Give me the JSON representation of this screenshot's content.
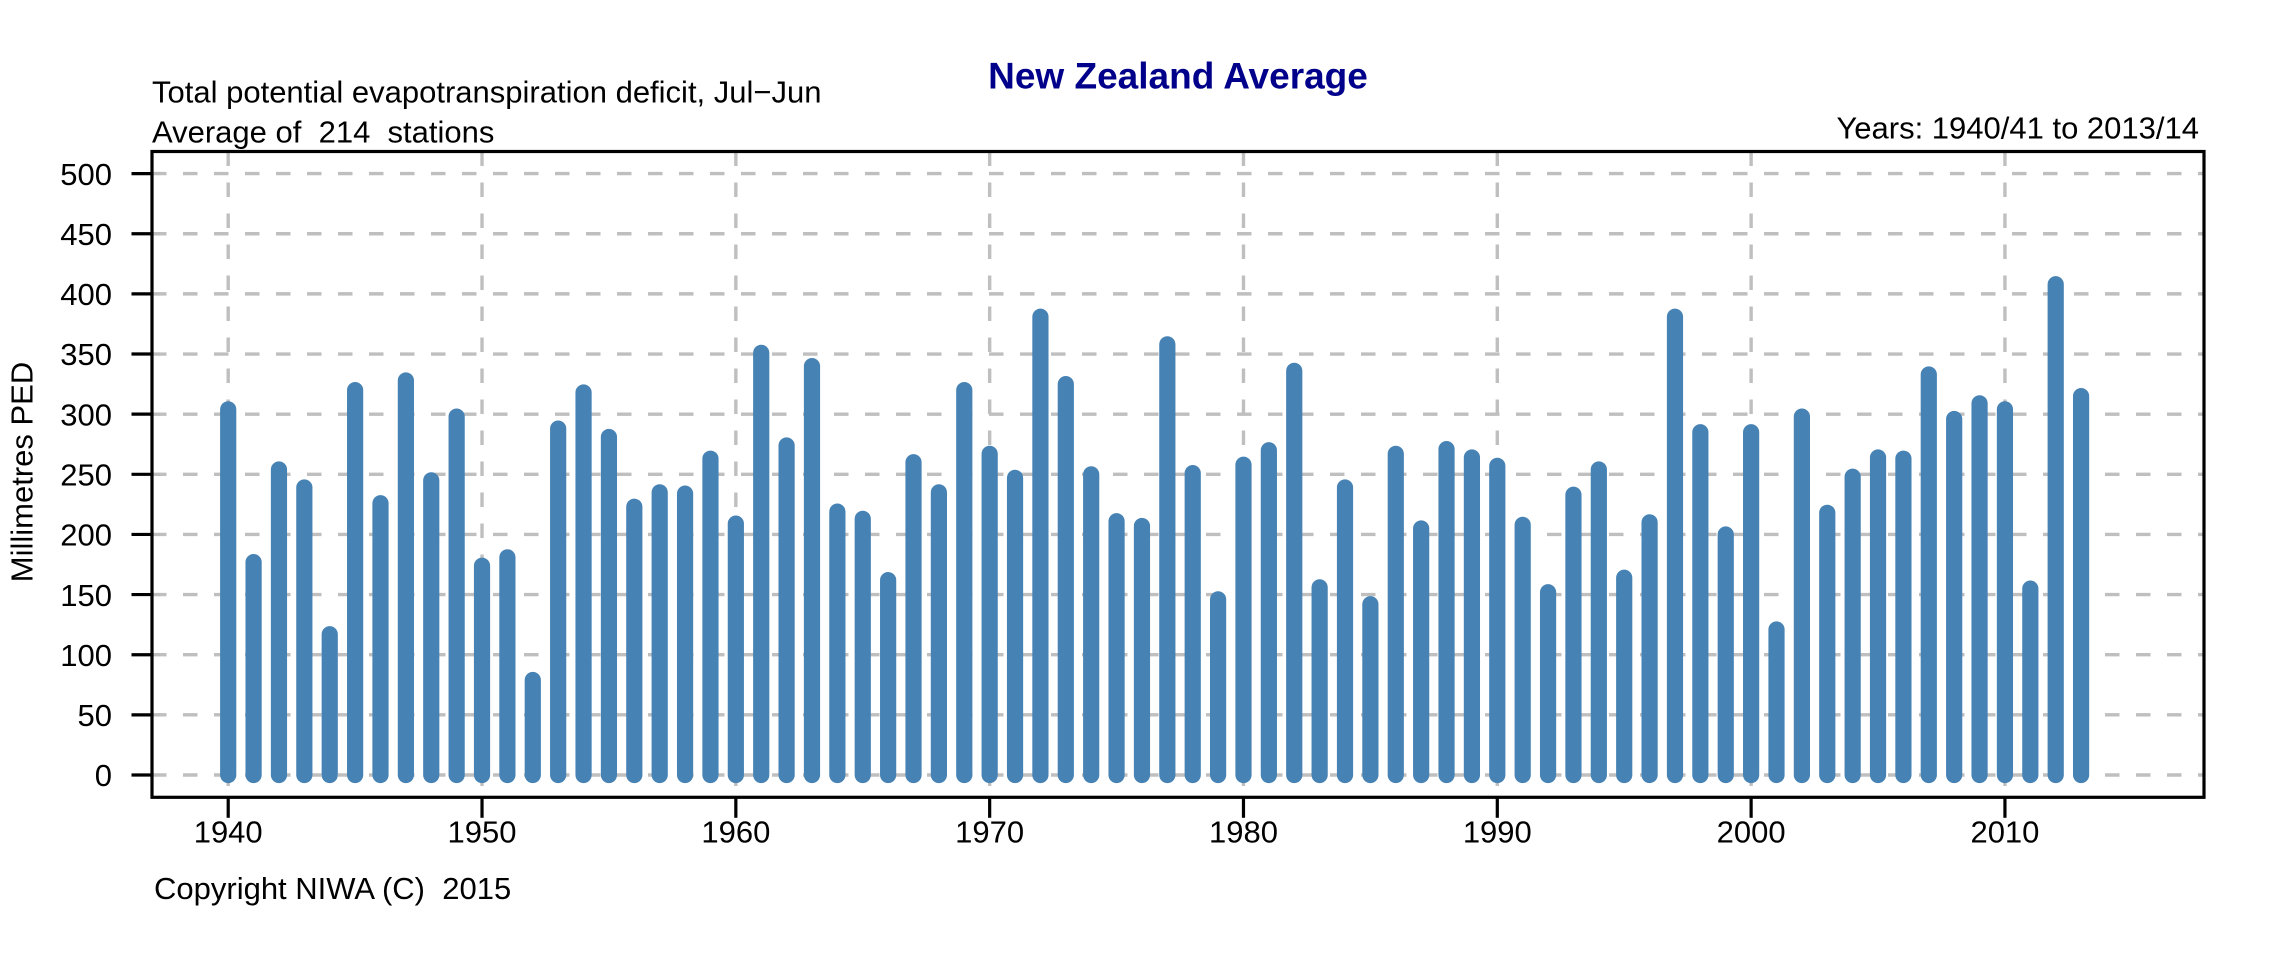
{
  "chart_data": {
    "type": "bar",
    "title": "New Zealand Average",
    "subtitle_line1": "Total potential evapotranspiration deficit, Jul−Jun",
    "subtitle_line2": "Average of  214  stations",
    "years_note": "Years: 1940/41 to 2013/14",
    "copyright": "Copyright NIWA (C)  2015",
    "ylabel": "Millimetres PED",
    "xlabel": "",
    "x": [
      1940,
      1941,
      1942,
      1943,
      1944,
      1945,
      1946,
      1947,
      1948,
      1949,
      1950,
      1951,
      1952,
      1953,
      1954,
      1955,
      1956,
      1957,
      1958,
      1959,
      1960,
      1961,
      1962,
      1963,
      1964,
      1965,
      1966,
      1967,
      1968,
      1969,
      1970,
      1971,
      1972,
      1973,
      1974,
      1975,
      1976,
      1977,
      1978,
      1979,
      1980,
      1981,
      1982,
      1983,
      1984,
      1985,
      1986,
      1987,
      1988,
      1989,
      1990,
      1991,
      1992,
      1993,
      1994,
      1995,
      1996,
      1997,
      1998,
      1999,
      2000,
      2001,
      2002,
      2003,
      2004,
      2005,
      2006,
      2007,
      2008,
      2009,
      2010,
      2011,
      2012,
      2013
    ],
    "values": [
      304,
      177,
      254,
      239,
      117,
      320,
      226,
      328,
      245,
      298,
      174,
      181,
      79,
      288,
      318,
      281,
      223,
      235,
      234,
      263,
      209,
      351,
      274,
      340,
      219,
      213,
      162,
      260,
      235,
      320,
      267,
      247,
      381,
      325,
      250,
      211,
      207,
      358,
      251,
      146,
      258,
      270,
      336,
      156,
      239,
      142,
      267,
      205,
      271,
      264,
      257,
      208,
      152,
      233,
      254,
      164,
      210,
      381,
      285,
      200,
      285,
      121,
      298,
      218,
      248,
      264,
      263,
      333,
      296,
      309,
      304,
      155,
      408,
      315
    ],
    "ylim": [
      0,
      500
    ],
    "ytick_step": 50,
    "yticks": [
      0,
      50,
      100,
      150,
      200,
      250,
      300,
      350,
      400,
      450,
      500
    ],
    "xticks": [
      1940,
      1950,
      1960,
      1970,
      1980,
      1990,
      2000,
      2010
    ],
    "grid": true,
    "legend_position": "none",
    "bar_color": "#4682B4",
    "grid_color": "#BFBFBF",
    "title_color": "#00008B",
    "axis_color": "#000000"
  }
}
